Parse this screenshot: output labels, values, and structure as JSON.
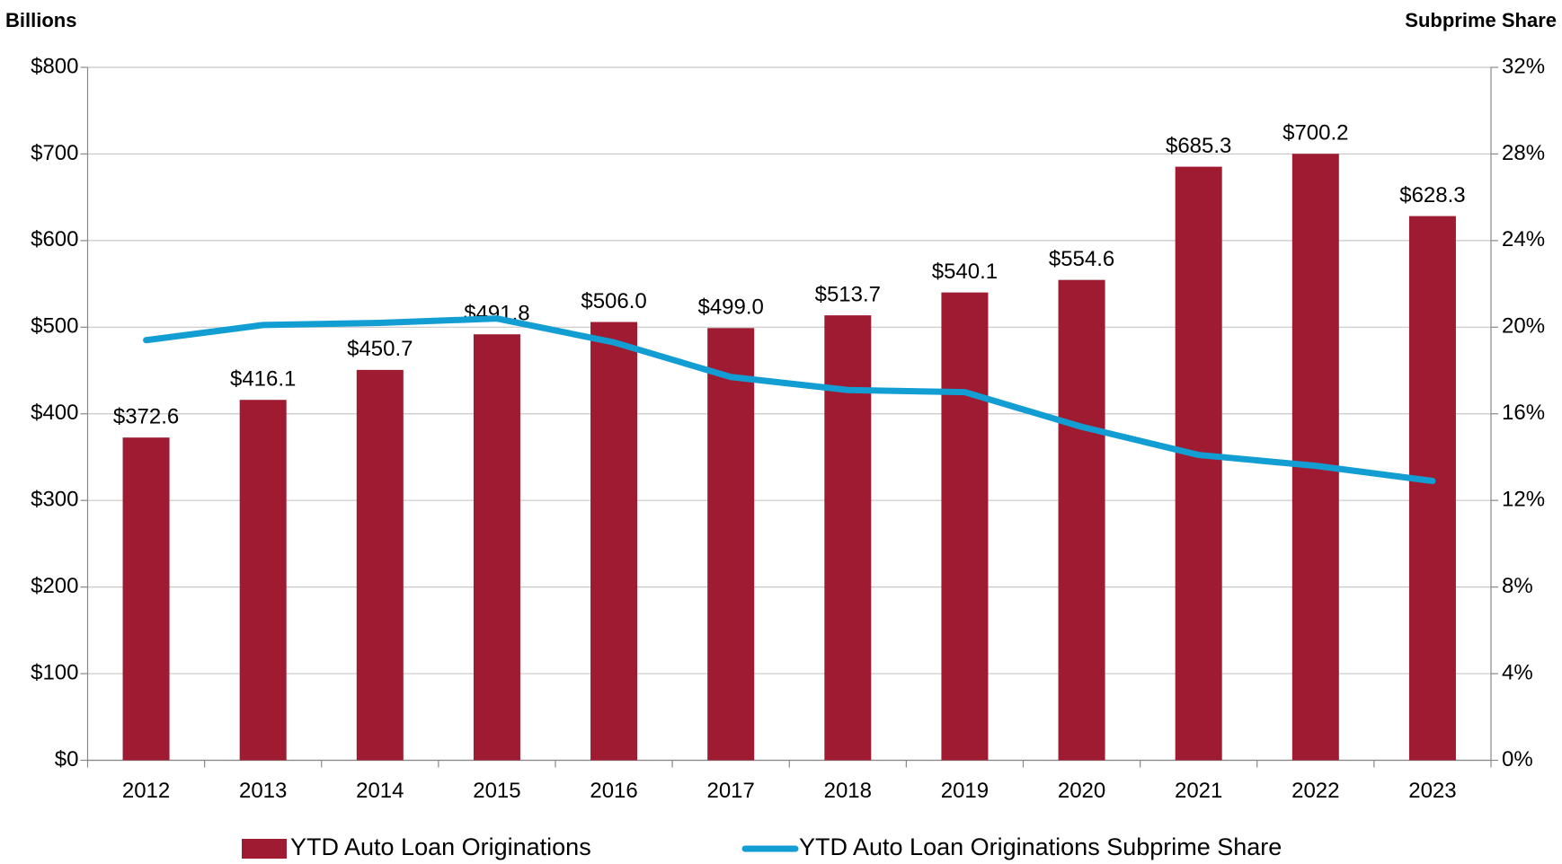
{
  "chart_data": {
    "type": "bar",
    "y_axis_title": "Billions",
    "y2_axis_title": "Subprime Share",
    "categories": [
      "2012",
      "2013",
      "2014",
      "2015",
      "2016",
      "2017",
      "2018",
      "2019",
      "2020",
      "2021",
      "2022",
      "2023"
    ],
    "series": [
      {
        "name": "YTD Auto Loan Originations",
        "type": "bar",
        "color": "#9e1b32",
        "values": [
          372.6,
          416.1,
          450.7,
          491.8,
          506.0,
          499.0,
          513.7,
          540.1,
          554.6,
          685.3,
          700.2,
          628.3
        ],
        "value_labels": [
          "$372.6",
          "$416.1",
          "$450.7",
          "$491.8",
          "$506.0",
          "$499.0",
          "$513.7",
          "$540.1",
          "$554.6",
          "$685.3",
          "$700.2",
          "$628.3"
        ]
      },
      {
        "name": "YTD Auto Loan Originations Subprime Share",
        "type": "line",
        "axis": "y2",
        "color": "#139ed3",
        "values": [
          19.4,
          20.1,
          20.2,
          20.4,
          19.3,
          17.7,
          17.1,
          17.0,
          15.4,
          14.1,
          13.6,
          12.9
        ]
      }
    ],
    "ylim": [
      0,
      800
    ],
    "yticks": [
      {
        "value": 0,
        "label": "$0"
      },
      {
        "value": 100,
        "label": "$100"
      },
      {
        "value": 200,
        "label": "$200"
      },
      {
        "value": 300,
        "label": "$300"
      },
      {
        "value": 400,
        "label": "$400"
      },
      {
        "value": 500,
        "label": "$500"
      },
      {
        "value": 600,
        "label": "$600"
      },
      {
        "value": 700,
        "label": "$700"
      },
      {
        "value": 800,
        "label": "$800"
      }
    ],
    "y2lim": [
      0,
      32
    ],
    "y2ticks": [
      {
        "value": 0,
        "label": "0%"
      },
      {
        "value": 4,
        "label": "4%"
      },
      {
        "value": 8,
        "label": "8%"
      },
      {
        "value": 12,
        "label": "12%"
      },
      {
        "value": 16,
        "label": "16%"
      },
      {
        "value": 20,
        "label": "20%"
      },
      {
        "value": 24,
        "label": "24%"
      },
      {
        "value": 28,
        "label": "28%"
      },
      {
        "value": 32,
        "label": "32%"
      }
    ],
    "grid": true,
    "legend": "bottom"
  }
}
